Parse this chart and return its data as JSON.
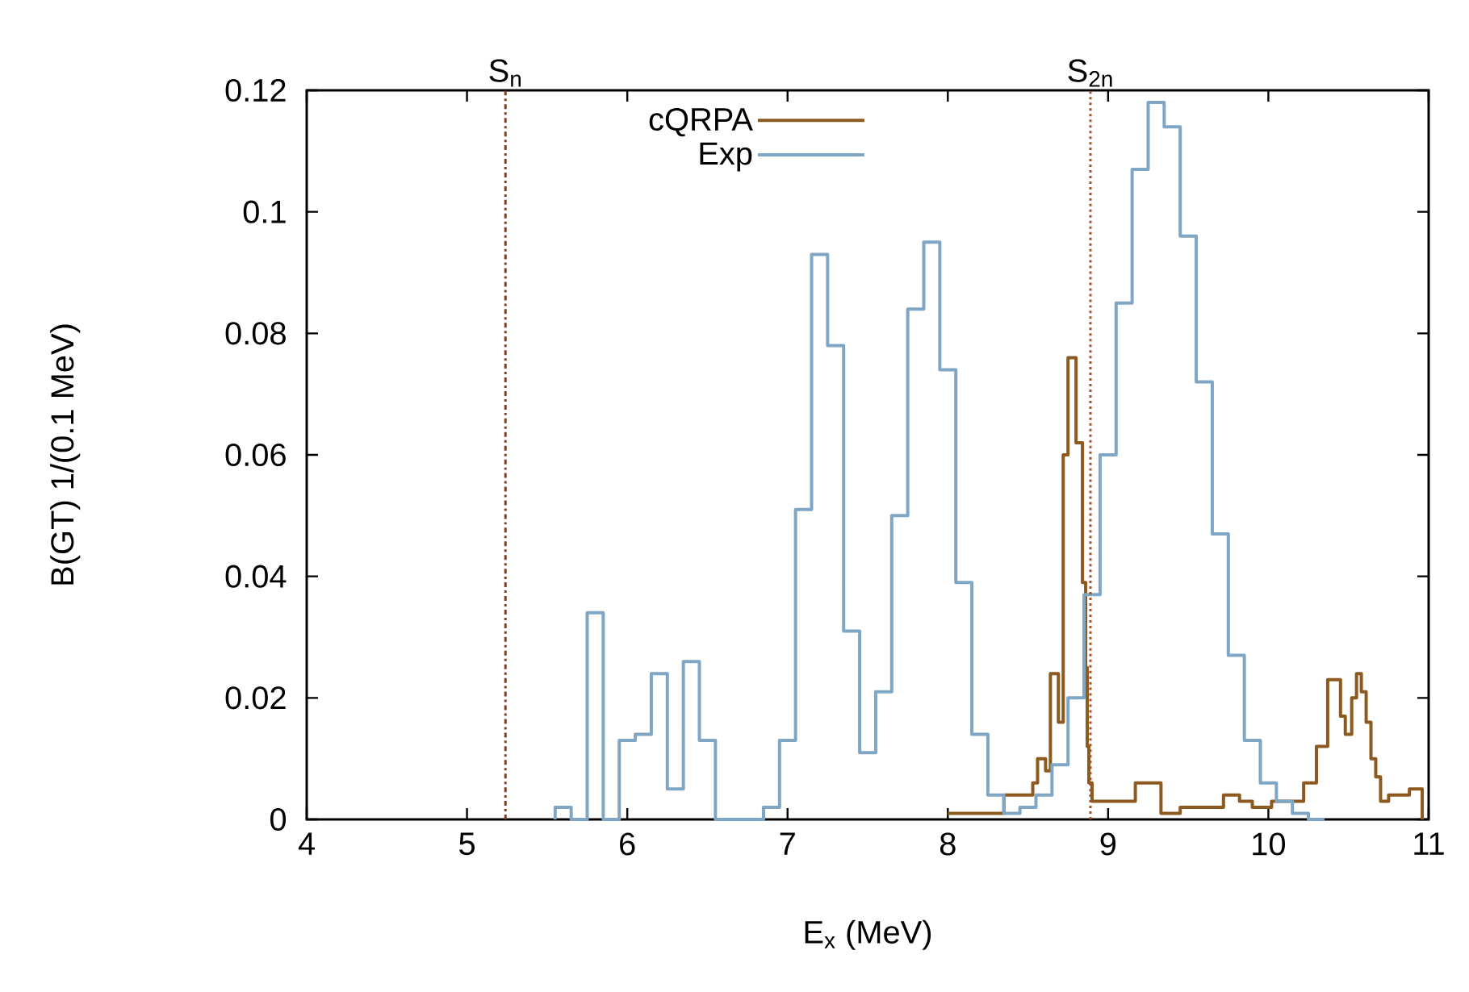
{
  "chart_data": {
    "type": "step",
    "xlabel": "E$_{x}$ (MeV)",
    "ylabel": "B(GT) 1/(0.1 MeV)",
    "series": [
      {
        "name": "cQRPA",
        "color": "#8c5a1e",
        "x": [
          8.0,
          8.35,
          8.53,
          8.56,
          8.61,
          8.64,
          8.69,
          8.72,
          8.75,
          8.8,
          8.84,
          8.86,
          8.87,
          8.88,
          8.9,
          9.17,
          9.33,
          9.45,
          9.72,
          9.82,
          9.9,
          10.02,
          10.22,
          10.3,
          10.37,
          10.45,
          10.48,
          10.52,
          10.55,
          10.58,
          10.61,
          10.64,
          10.67,
          10.7,
          10.75,
          10.88,
          10.96
        ],
        "values": [
          0.001,
          0.004,
          0.006,
          0.01,
          0.008,
          0.024,
          0.016,
          0.06,
          0.076,
          0.062,
          0.039,
          0.025,
          0.012,
          0.006,
          0.003,
          0.006,
          0.001,
          0.002,
          0.004,
          0.003,
          0.002,
          0.003,
          0.006,
          0.012,
          0.023,
          0.017,
          0.014,
          0.02,
          0.024,
          0.021,
          0.016,
          0.01,
          0.007,
          0.003,
          0.004,
          0.005,
          0
        ]
      },
      {
        "name": "Exp",
        "color": "#7fa6c4",
        "x": [
          5.55,
          5.55,
          5.65,
          5.75,
          5.85,
          5.95,
          6.05,
          6.15,
          6.25,
          6.35,
          6.45,
          6.55,
          6.65,
          6.75,
          6.85,
          6.95,
          7.05,
          7.15,
          7.25,
          7.35,
          7.45,
          7.55,
          7.65,
          7.75,
          7.85,
          7.95,
          8.05,
          8.15,
          8.25,
          8.35,
          8.45,
          8.55,
          8.65,
          8.75,
          8.85,
          8.95,
          9.05,
          9.15,
          9.25,
          9.35,
          9.45,
          9.55,
          9.65,
          9.75,
          9.85,
          9.95,
          10.05,
          10.15,
          10.25,
          10.35
        ],
        "values": [
          0,
          0.002,
          0,
          0.034,
          0,
          0.013,
          0.014,
          0.024,
          0.005,
          0.026,
          0.013,
          0,
          0,
          0,
          0.002,
          0.013,
          0.051,
          0.093,
          0.078,
          0.031,
          0.011,
          0.021,
          0.05,
          0.084,
          0.095,
          0.074,
          0.039,
          0.014,
          0.004,
          0.001,
          0.002,
          0.004,
          0.009,
          0.02,
          0.037,
          0.06,
          0.085,
          0.107,
          0.118,
          0.114,
          0.096,
          0.072,
          0.047,
          0.027,
          0.013,
          0.006,
          0.003,
          0.001,
          0,
          0
        ]
      }
    ],
    "xlim": [
      4,
      11
    ],
    "ylim": [
      0,
      0.12
    ],
    "xticks": [
      {
        "value": 4,
        "label": "4"
      },
      {
        "value": 5,
        "label": "5"
      },
      {
        "value": 6,
        "label": "6"
      },
      {
        "value": 7,
        "label": "7"
      },
      {
        "value": 8,
        "label": "8"
      },
      {
        "value": 9,
        "label": "9"
      },
      {
        "value": 10,
        "label": "10"
      },
      {
        "value": 11,
        "label": "11"
      }
    ],
    "yticks": [
      {
        "value": 0,
        "label": "0"
      },
      {
        "value": 0.02,
        "label": "0.02"
      },
      {
        "value": 0.04,
        "label": "0.04"
      },
      {
        "value": 0.06,
        "label": "0.06"
      },
      {
        "value": 0.08,
        "label": "0.08"
      },
      {
        "value": 0.1,
        "label": "0.1"
      },
      {
        "value": 0.12,
        "label": "0.12"
      }
    ],
    "ref_lines": [
      {
        "axis": "x",
        "value": 5.24,
        "label": "S$_{n}$",
        "color": "#8b3a1a",
        "line_style": "dashdot"
      },
      {
        "axis": "x",
        "value": 8.89,
        "label": "S$_{2n}$",
        "color": "#a0522d",
        "line_style": "dotted"
      }
    ],
    "legend": "top",
    "grid": false
  }
}
